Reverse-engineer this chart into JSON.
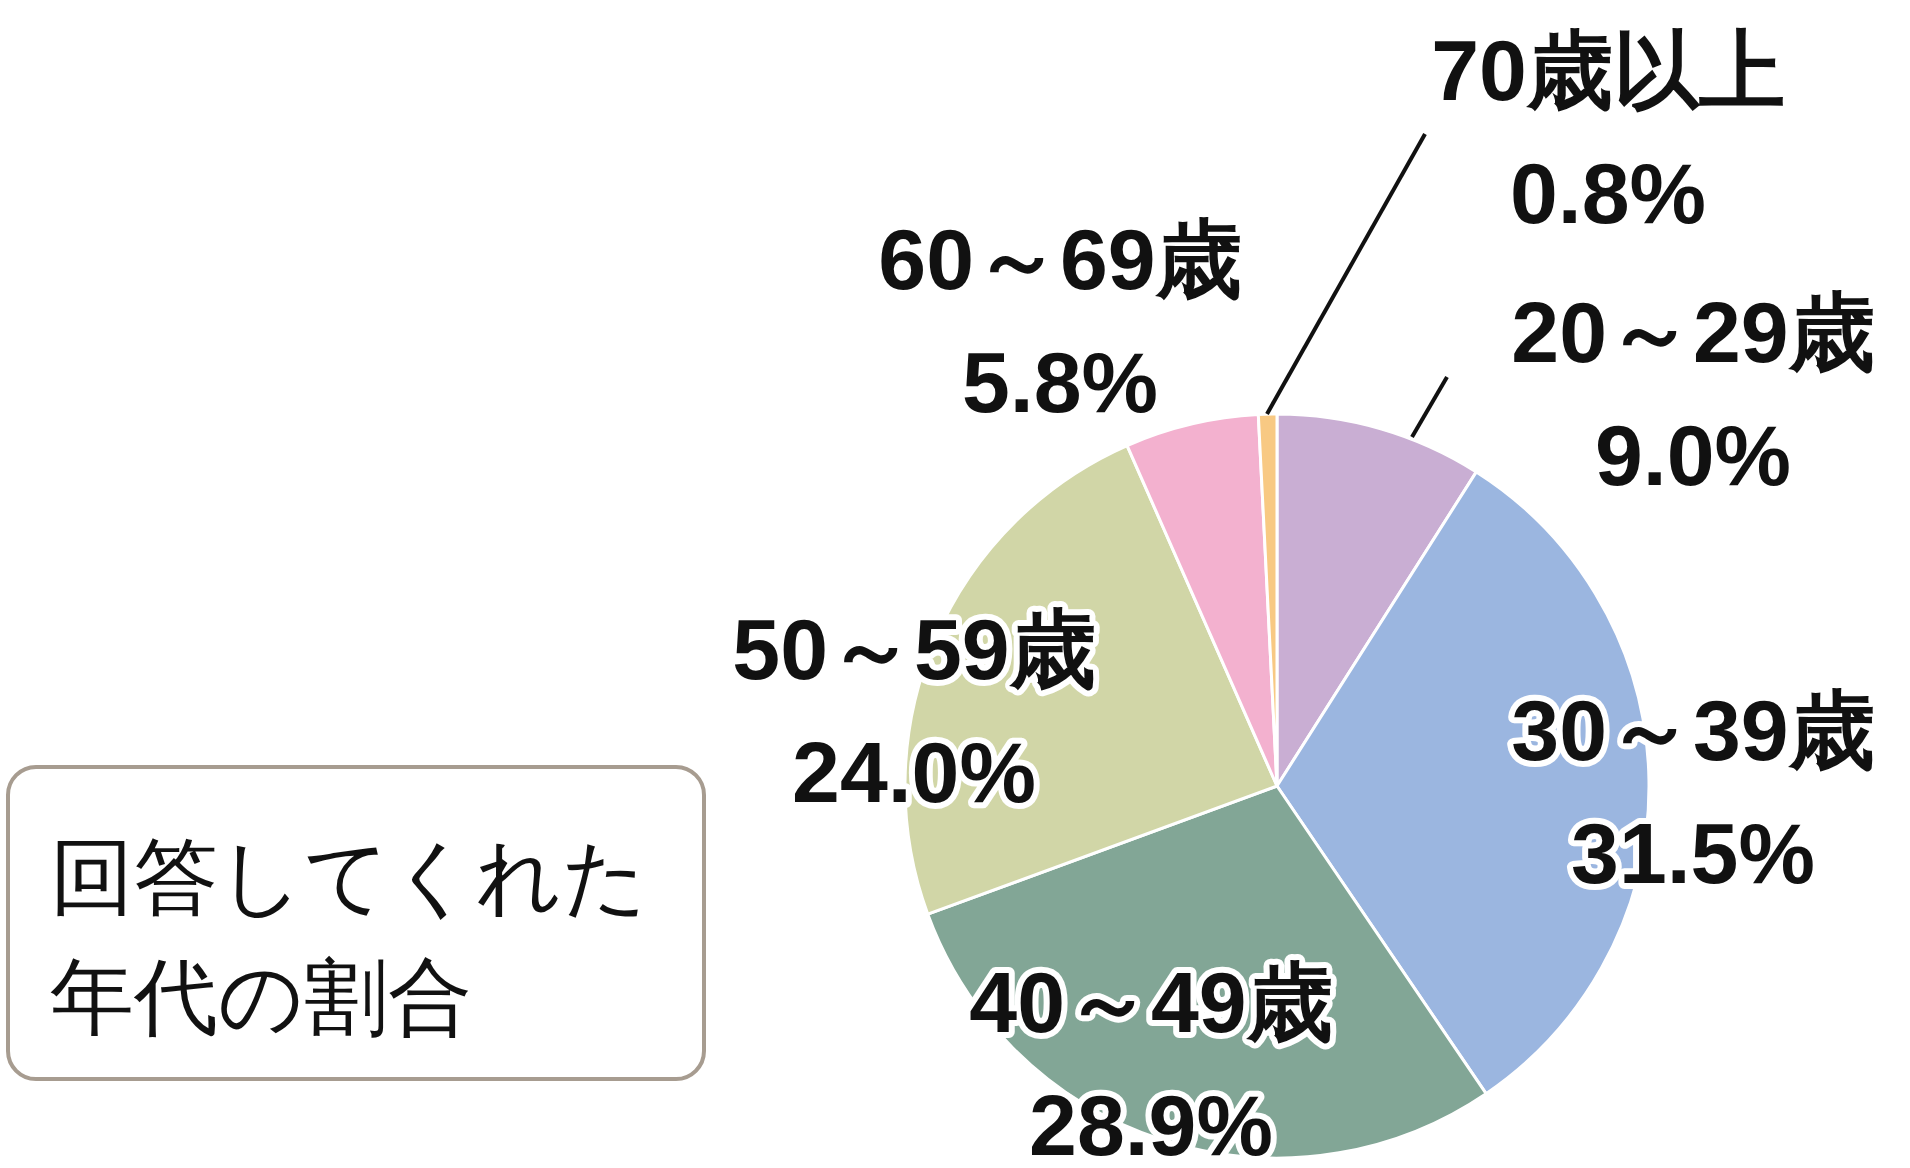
{
  "chart_data": {
    "type": "pie",
    "title": "回答してくれた年代の割合",
    "categories": [
      "20～29歳",
      "30～39歳",
      "40～49歳",
      "50～59歳",
      "60～69歳",
      "70歳以上"
    ],
    "values": [
      9.0,
      31.5,
      28.9,
      24.0,
      5.8,
      0.8
    ],
    "value_labels": [
      "9.0%",
      "31.5%",
      "28.9%",
      "24.0%",
      "5.8%",
      "0.8%"
    ],
    "colors": [
      "#c9aed3",
      "#9bb6e0",
      "#82a696",
      "#d1d6a7",
      "#f3b1cf",
      "#f8c983"
    ],
    "legend": false
  }
}
